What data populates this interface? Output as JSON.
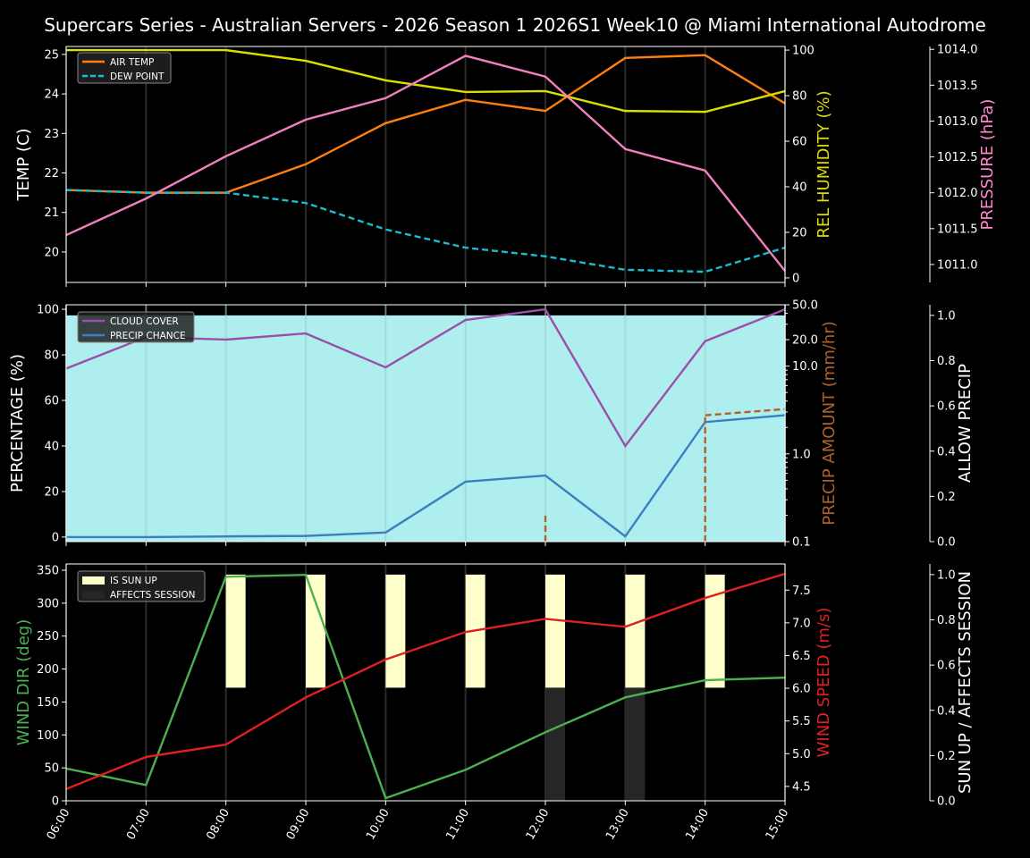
{
  "chart_data": {
    "title": "Supercars Series - Australian Servers - 2026 Season 1 2026S1 Week10 @ Miami International Autodrome",
    "x_hours": [
      6,
      7,
      8,
      9,
      10,
      11,
      12,
      13,
      14,
      15
    ],
    "x_tick_labels": [
      "06:00",
      "07:00",
      "08:00",
      "09:00",
      "10:00",
      "11:00",
      "12:00",
      "13:00",
      "14:00",
      "15:00"
    ],
    "panels": [
      {
        "type": "line",
        "left_axis": {
          "label": "TEMP (C)",
          "color": "#ffffff",
          "range": [
            19.23,
            25.2
          ],
          "ticks": [
            20,
            21,
            22,
            23,
            24,
            25
          ],
          "tick_labels": [
            "20",
            "21",
            "22",
            "23",
            "24",
            "25"
          ]
        },
        "right_axis": {
          "label": "REL HUMIDITY (%)",
          "color": "#dddd00",
          "range": [
            -2,
            101.6
          ],
          "ticks": [
            0,
            20,
            40,
            60,
            80,
            100
          ],
          "tick_labels": [
            "0",
            "20",
            "40",
            "60",
            "80",
            "100"
          ]
        },
        "far_axis": {
          "label": "PRESSURE (hPa)",
          "color": "#ff88c8",
          "range": [
            1010.75,
            1014.04
          ],
          "ticks": [
            1011,
            1011.5,
            1012,
            1012.5,
            1013,
            1013.5,
            1014
          ],
          "tick_labels": [
            "1011.0",
            "1011.5",
            "1012.0",
            "1012.5",
            "1013.0",
            "1013.5",
            "1014.0"
          ]
        },
        "series": [
          {
            "name": "AIR TEMP",
            "axis": "left",
            "color": "#ff7f0e",
            "dash": false,
            "legend": true,
            "values": [
              21.57,
              21.5,
              21.5,
              22.22,
              23.26,
              23.85,
              23.57,
              24.91,
              24.98,
              23.76
            ]
          },
          {
            "name": "DEW POINT",
            "axis": "left",
            "color": "#17becf",
            "dash": true,
            "legend": true,
            "values": [
              21.57,
              21.5,
              21.5,
              21.24,
              20.57,
              20.11,
              19.89,
              19.55,
              19.5,
              20.11
            ]
          },
          {
            "name": "REL HUMIDITY",
            "axis": "right",
            "color": "#dddd00",
            "dash": false,
            "legend": false,
            "values": [
              100,
              100,
              100,
              95.3,
              86.7,
              81.6,
              82,
              73.3,
              72.9,
              82
            ]
          },
          {
            "name": "PRESSURE",
            "axis": "far",
            "color": "#f080c0",
            "dash": false,
            "legend": false,
            "values": [
              1011.41,
              1011.92,
              1012.51,
              1013.02,
              1013.32,
              1013.91,
              1013.62,
              1012.61,
              1012.31,
              1010.91
            ]
          }
        ]
      },
      {
        "type": "line",
        "left_axis": {
          "label": "PERCENTAGE (%)",
          "color": "#ffffff",
          "range": [
            -2,
            102
          ],
          "ticks": [
            0,
            20,
            40,
            60,
            80,
            100
          ],
          "tick_labels": [
            "0",
            "20",
            "40",
            "60",
            "80",
            "100"
          ]
        },
        "right_axis": {
          "label": "PRECIP AMOUNT (mm/hr)",
          "color": "#b0602a",
          "scale": "log",
          "range": [
            0.1,
            50
          ],
          "ticks": [
            0.1,
            1,
            10,
            20,
            50
          ],
          "tick_labels": [
            "0.1",
            "1.0",
            "10.0",
            "20.0",
            "50.0"
          ]
        },
        "far_axis": {
          "label": "ALLOW PRECIP",
          "color": "#ffffff",
          "range": [
            0,
            1.047
          ],
          "ticks": [
            0,
            0.2,
            0.4,
            0.6,
            0.8,
            1.0
          ],
          "tick_labels": [
            "0.0",
            "0.2",
            "0.4",
            "0.6",
            "0.8",
            "1.0"
          ]
        },
        "allow_precip": {
          "color": "#afeeee",
          "values": [
            1,
            1,
            1,
            1,
            1,
            1,
            1,
            1,
            1,
            1
          ]
        },
        "series": [
          {
            "name": "CLOUD COVER",
            "axis": "left",
            "color": "#9b4fa8",
            "dash": false,
            "legend": true,
            "values": [
              74,
              87.8,
              86.7,
              89.4,
              74.5,
              95.3,
              100,
              40,
              86,
              100
            ]
          },
          {
            "name": "PRECIP CHANCE",
            "axis": "left",
            "color": "#3a7fc0",
            "dash": false,
            "legend": true,
            "values": [
              0,
              0,
              0.3,
              0.5,
              2,
              24.3,
              27,
              0.3,
              50.5,
              53.5
            ]
          },
          {
            "name": "PRECIP AMOUNT",
            "axis": "right",
            "color": "#b0602a",
            "dash": true,
            "legend": false,
            "values": [
              0,
              0,
              0,
              0,
              0,
              0,
              0.2,
              0,
              2.75,
              3.24
            ]
          }
        ]
      },
      {
        "type": "line",
        "left_axis": {
          "label": "WIND DIR (deg)",
          "color": "#4caf50",
          "range": [
            0,
            359.5
          ],
          "ticks": [
            0,
            50,
            100,
            150,
            200,
            250,
            300,
            350
          ],
          "tick_labels": [
            "0",
            "50",
            "100",
            "150",
            "200",
            "250",
            "300",
            "350"
          ]
        },
        "right_axis": {
          "label": "WIND SPEED (m/s)",
          "color": "#e02020",
          "range": [
            4.28,
            7.9
          ],
          "ticks": [
            4.5,
            5,
            5.5,
            6,
            6.5,
            7,
            7.5
          ],
          "tick_labels": [
            "4.5",
            "5.0",
            "5.5",
            "6.0",
            "6.5",
            "7.0",
            "7.5"
          ]
        },
        "far_axis": {
          "label": "SUN UP / AFFECTS SESSION",
          "color": "#ffffff",
          "range": [
            0,
            1.047
          ],
          "ticks": [
            0,
            0.2,
            0.4,
            0.6,
            0.8,
            1.0
          ],
          "tick_labels": [
            "0.0",
            "0.2",
            "0.4",
            "0.6",
            "0.8",
            "1.0"
          ]
        },
        "bars": [
          {
            "name": "IS SUN UP",
            "color": "#ffffcc",
            "base": 0.5,
            "height": 0.5,
            "values": [
              0,
              0,
              1,
              1,
              1,
              1,
              1,
              1,
              1,
              0
            ]
          },
          {
            "name": "AFFECTS SESSION",
            "color": "#262626",
            "base": 0,
            "height": 0.5,
            "values": [
              0,
              0,
              0,
              0,
              0,
              0,
              1,
              1,
              0,
              0
            ]
          }
        ],
        "series": [
          {
            "name": "WIND DIR",
            "axis": "left",
            "color": "#4caf50",
            "dash": false,
            "legend": false,
            "values": [
              49,
              24,
              340,
              343,
              4,
              47,
              104,
              157,
              183,
              187
            ]
          },
          {
            "name": "WIND SPEED",
            "axis": "right",
            "color": "#e02020",
            "dash": false,
            "legend": false,
            "values": [
              4.46,
              4.95,
              5.14,
              5.86,
              6.44,
              6.86,
              7.06,
              6.94,
              7.38,
              7.75
            ]
          }
        ]
      }
    ]
  }
}
